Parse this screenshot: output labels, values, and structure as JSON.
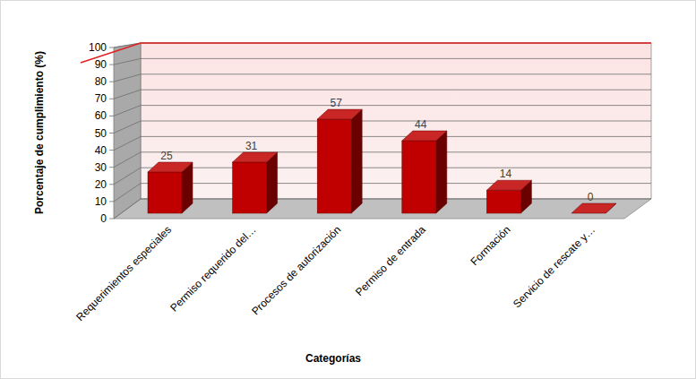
{
  "chart_data": {
    "type": "bar",
    "x_label": "Categorías",
    "y_label": "Porcentaje de cumplimiento (%)",
    "categories": [
      "Requerimientos especiales",
      "Permiso requerido del…",
      "Procesos de autorización",
      "Permiso de entrada",
      "Formación",
      "Servicio de rescate y…"
    ],
    "series": [
      {
        "type": "bar",
        "color": "#c00000",
        "values": [
          25,
          31,
          57,
          44,
          14,
          0
        ]
      },
      {
        "type": "line",
        "color": "#e02020",
        "values": [
          100,
          100,
          100,
          100,
          100,
          100
        ]
      }
    ],
    "data_labels": true,
    "ylim": [
      0,
      100
    ],
    "yticks": [
      0,
      10,
      20,
      30,
      40,
      50,
      60,
      70,
      80,
      90,
      100
    ],
    "grid": true
  }
}
